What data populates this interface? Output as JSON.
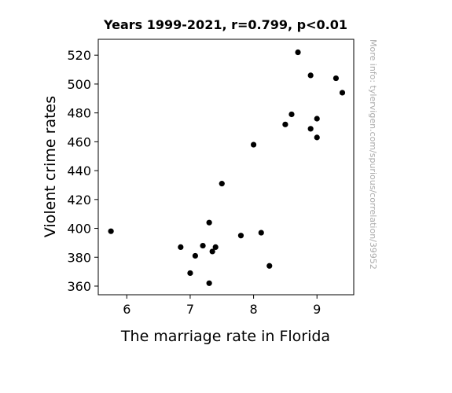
{
  "chart_data": {
    "type": "scatter",
    "title": "Years 1999-2021, r=0.799, p<0.01",
    "xlabel": "The marriage rate in Florida",
    "ylabel": "Violent crime rates",
    "side_note": "More info: tylervigen.com/spurious/correlation/39952",
    "xlim": [
      5.55,
      9.58
    ],
    "ylim": [
      354,
      531
    ],
    "x_ticks": [
      6,
      7,
      8,
      9
    ],
    "y_ticks": [
      360,
      380,
      400,
      420,
      440,
      460,
      480,
      500,
      520
    ],
    "grid": false,
    "point_color": "#000000",
    "points": [
      {
        "x": 5.75,
        "y": 398
      },
      {
        "x": 6.85,
        "y": 387
      },
      {
        "x": 7.0,
        "y": 369
      },
      {
        "x": 7.08,
        "y": 381
      },
      {
        "x": 7.2,
        "y": 388
      },
      {
        "x": 7.3,
        "y": 404
      },
      {
        "x": 7.3,
        "y": 362
      },
      {
        "x": 7.35,
        "y": 384
      },
      {
        "x": 7.4,
        "y": 387
      },
      {
        "x": 7.5,
        "y": 431
      },
      {
        "x": 7.8,
        "y": 395
      },
      {
        "x": 8.0,
        "y": 458
      },
      {
        "x": 8.12,
        "y": 397
      },
      {
        "x": 8.25,
        "y": 374
      },
      {
        "x": 8.5,
        "y": 472
      },
      {
        "x": 8.6,
        "y": 479
      },
      {
        "x": 8.7,
        "y": 522
      },
      {
        "x": 8.9,
        "y": 506
      },
      {
        "x": 8.9,
        "y": 469
      },
      {
        "x": 9.0,
        "y": 476
      },
      {
        "x": 9.0,
        "y": 463
      },
      {
        "x": 9.3,
        "y": 504
      },
      {
        "x": 9.4,
        "y": 494
      }
    ]
  }
}
